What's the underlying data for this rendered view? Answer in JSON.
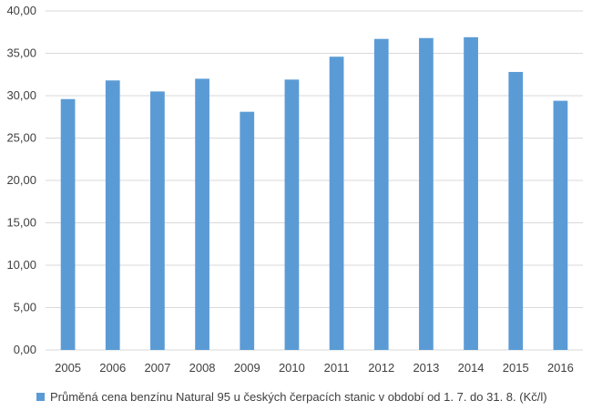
{
  "chart_data": {
    "type": "bar",
    "categories": [
      "2005",
      "2006",
      "2007",
      "2008",
      "2009",
      "2010",
      "2011",
      "2012",
      "2013",
      "2014",
      "2015",
      "2016"
    ],
    "series": [
      {
        "name": "Průměná cena benzínu Natural 95 u českých čerpacích stanic v období od 1. 7. do 31. 8. (Kč/l)",
        "values": [
          29.6,
          31.8,
          30.5,
          32.0,
          28.1,
          31.9,
          34.6,
          36.7,
          36.8,
          36.9,
          32.8,
          29.4
        ],
        "color": "#5b9bd5"
      }
    ],
    "ylim": [
      0,
      40
    ],
    "yticks": [
      "0,00",
      "5,00",
      "10,00",
      "15,00",
      "20,00",
      "25,00",
      "30,00",
      "35,00",
      "40,00"
    ],
    "grid": true,
    "legend_position": "bottom",
    "gridline_color": "#d9d9d9"
  }
}
